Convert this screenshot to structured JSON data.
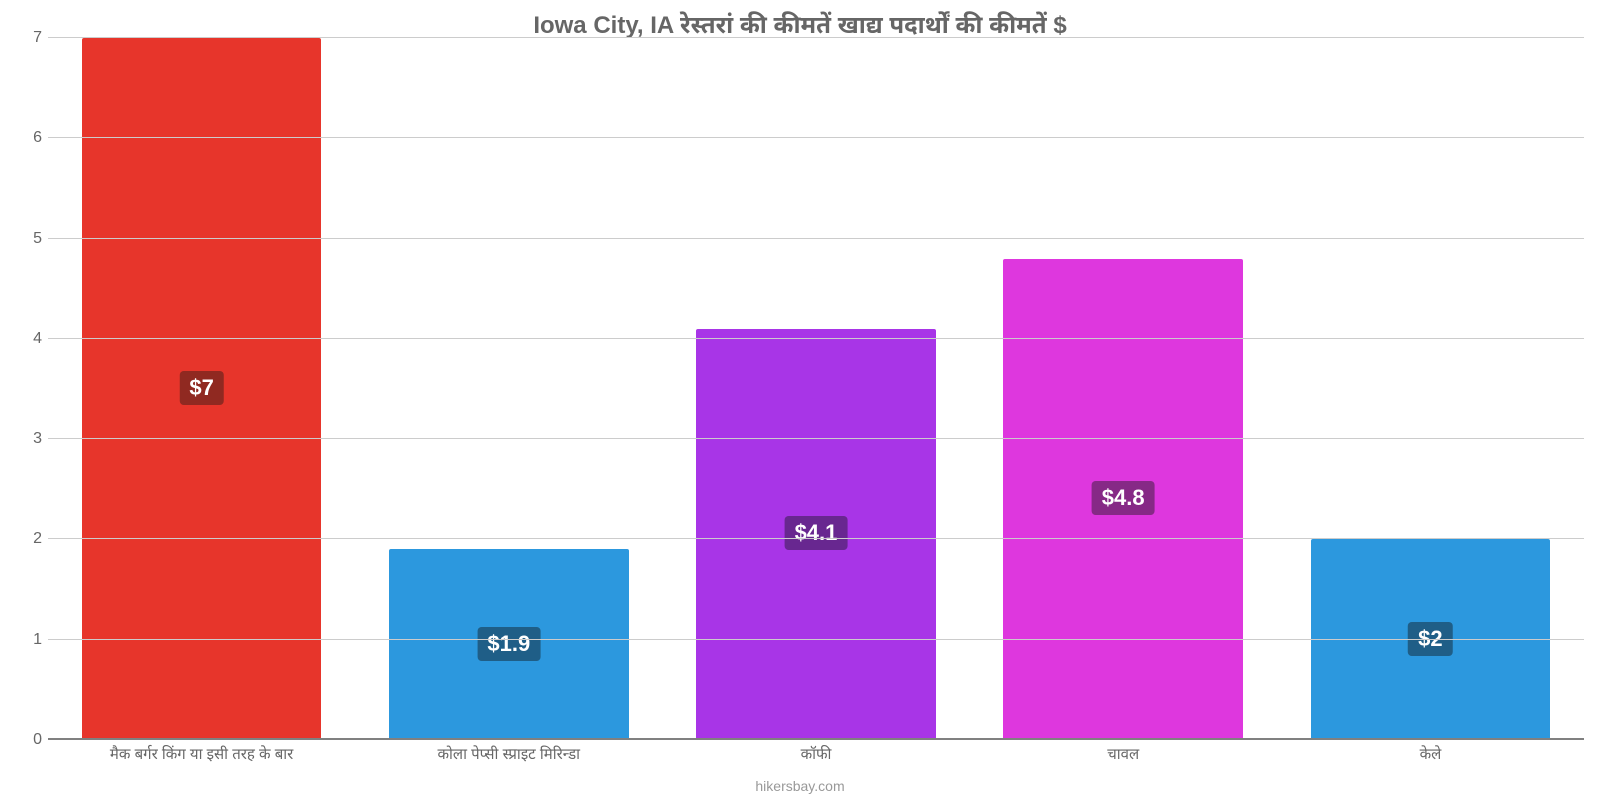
{
  "chart": {
    "type": "bar",
    "title": "Iowa City, IA रेस्तरां की कीमतें खाद्य पदार्थों की कीमतें $",
    "title_color": "#666666",
    "title_fontsize": 24,
    "ylim_min": 0,
    "ylim_max": 7,
    "ytick_step": 1,
    "yticks": [
      0,
      1,
      2,
      3,
      4,
      5,
      6,
      7
    ],
    "grid_color": "#cccccc",
    "axis_color": "#808080",
    "background_color": "#ffffff",
    "tick_fontsize": 16,
    "tick_color": "#666666",
    "bar_width_pct": 78,
    "value_label_fontsize": 22,
    "value_label_color": "#ffffff",
    "xlabel_fontsize": 15,
    "xlabel_color": "#666666",
    "footer_text": "hikersbay.com",
    "footer_color": "#999999",
    "footer_fontsize": 14,
    "items": [
      {
        "label": "मैक बर्गर किंग या इसी तरह के बार",
        "value": 7.0,
        "value_text": "$7",
        "bar_color": "#e7352b",
        "badge_color": "#902921"
      },
      {
        "label": "कोला पेप्सी स्प्राइट मिरिन्डा",
        "value": 1.9,
        "value_text": "$1.9",
        "bar_color": "#2c98de",
        "badge_color": "#1f5e87"
      },
      {
        "label": "कॉफी",
        "value": 4.1,
        "value_text": "$4.1",
        "bar_color": "#a835e7",
        "badge_color": "#682790"
      },
      {
        "label": "चावल",
        "value": 4.8,
        "value_text": "$4.8",
        "bar_color": "#de37de",
        "badge_color": "#862986"
      },
      {
        "label": "केले",
        "value": 2.0,
        "value_text": "$2",
        "bar_color": "#2c98de",
        "badge_color": "#1f5e87"
      }
    ]
  }
}
